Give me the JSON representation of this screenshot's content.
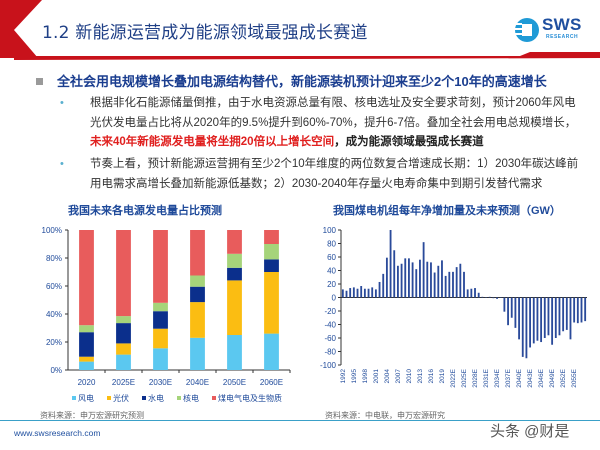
{
  "header": {
    "title": "1.2 新能源运营成为能源领域最强成长赛道",
    "logo_text": "SWS",
    "logo_subtext": "RESEARCH",
    "accent_color": "#c8121b"
  },
  "main_point": "全社会用电规模增长叠加电源结构替代，新能源装机预计迎来至少2个10年的高速增长",
  "bullets": [
    {
      "text_a": "根据非化石能源储量倒推，由于水电资源总量有限、核电选址及安全要求苛刻，预计2060年风电光伏发电量占比将从2020年的9.5%提升到60%-70%，提升6-7倍。叠加全社会用电总规模增长，",
      "text_red": "未来40年新能源发电量将坐拥20倍以上增长空间",
      "text_bold": "，成为能源领域最强成长赛道"
    },
    {
      "text_a": "节奏上看，预计新能源运营拥有至少2个10年维度的两位数复合增速成长期：1）2030年碳达峰前用电需求高增长叠加新能源低基数；2）2030-2040年存量火电寿命集中到期引发替代需求"
    }
  ],
  "chart_data": [
    {
      "type": "bar",
      "stacked": true,
      "title": "我国未来各电源发电量占比预测",
      "categories": [
        "2020",
        "2025E",
        "2030E",
        "2040E",
        "2050E",
        "2060E"
      ],
      "yticks": [
        "0%",
        "20%",
        "40%",
        "60%",
        "80%",
        "100%"
      ],
      "ylim": [
        0,
        100
      ],
      "series": [
        {
          "name": "风电",
          "color": "#5bc8f0",
          "values": [
            6,
            11,
            15.5,
            23,
            25,
            26
          ]
        },
        {
          "name": "光伏",
          "color": "#fbbd12",
          "values": [
            3.5,
            8,
            14,
            25.5,
            39,
            44
          ]
        },
        {
          "name": "水电",
          "color": "#0b2f8c",
          "values": [
            17.5,
            14.5,
            12.5,
            11,
            9,
            9
          ]
        },
        {
          "name": "核电",
          "color": "#a6d47a",
          "values": [
            5,
            5,
            6,
            8,
            10,
            11
          ]
        },
        {
          "name": "煤电气电及生物质",
          "color": "#e85c5c",
          "values": [
            68,
            61.5,
            52,
            32.5,
            17,
            10
          ]
        }
      ],
      "legend": "bottom",
      "source": "资料来源：申万宏源研究预测"
    },
    {
      "type": "bar",
      "title": "我国煤电机组每年净增加量及未来预测（GW）",
      "x_start_year": 1992,
      "xtick_labels": [
        "1992",
        "1995",
        "1998",
        "2001",
        "2004",
        "2007",
        "2010",
        "2013",
        "2016",
        "2019",
        "2022E",
        "2025E",
        "2028E",
        "2031E",
        "2034E",
        "2037E",
        "2040E",
        "2043E",
        "2046E",
        "2049E",
        "2052E",
        "2055E"
      ],
      "yticks": [
        "-100",
        "-80",
        "-60",
        "-40",
        "-20",
        "0",
        "20",
        "40",
        "60",
        "80",
        "100"
      ],
      "ylim": [
        -100,
        100
      ],
      "color": "#2a4a9a",
      "values": [
        12,
        10,
        14,
        15,
        13,
        17,
        13,
        13,
        15,
        12,
        23,
        35,
        59,
        100,
        70,
        47,
        50,
        58,
        58,
        52,
        42,
        56,
        82,
        53,
        52,
        37,
        47,
        55,
        32,
        38,
        38,
        45,
        50,
        38,
        12,
        13,
        14,
        7,
        1,
        0,
        1,
        -1,
        -2,
        0,
        -21,
        -41,
        -30,
        -45,
        -62,
        -88,
        -90,
        -74,
        -68,
        -64,
        -66,
        -60,
        -56,
        -70,
        -60,
        -56,
        -50,
        -48,
        -62,
        -37,
        -38,
        -37,
        -35
      ],
      "source": "资料来源：中电联，申万宏源研究"
    }
  ],
  "footer": {
    "url": "www.swsresearch.com",
    "watermark": "头条 @财是"
  }
}
